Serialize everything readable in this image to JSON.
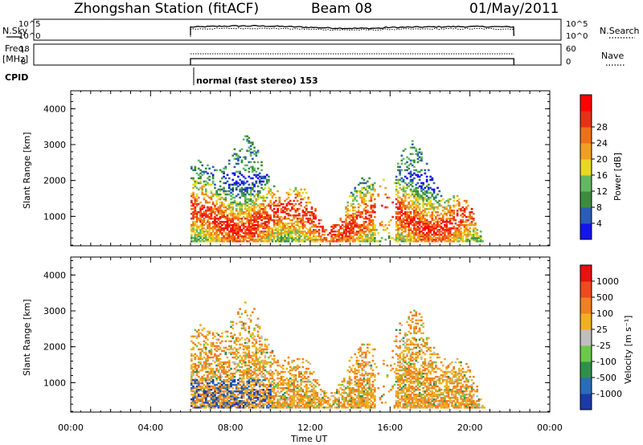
{
  "header": {
    "station": "Zhongshan Station (fitACF)",
    "beam": "Beam 08",
    "date": "01/May/2011"
  },
  "strips": {
    "nsky_label": "N.Sky",
    "nsearch_label": "N.Search",
    "freq_label_1": "Freq.",
    "freq_label_2": "[MHz]",
    "nave_label": "Nave",
    "cpid_label": "CPID",
    "cpid_text": "normal (fast stereo) 153",
    "nsky_ticks": [
      "10^5",
      "10^0"
    ],
    "nsearch_ticks": [
      "10^5",
      "10^0"
    ],
    "freq_ticks": [
      "18",
      "8"
    ],
    "nave_ticks": [
      "60",
      "0"
    ]
  },
  "chart_data": [
    {
      "type": "heatmap",
      "name": "power",
      "ylabel": "Slant Range [km]",
      "xlabel": "",
      "ylim": [
        180,
        4500
      ],
      "yticks": [
        "1000",
        "2000",
        "3000",
        "4000"
      ],
      "xlim": [
        0,
        24
      ],
      "colorbar": {
        "label": "Power [dB]",
        "ticks": [
          "4",
          "8",
          "12",
          "16",
          "20",
          "24",
          "28"
        ],
        "colors": [
          "#1414f0",
          "#2a5cb8",
          "#3c8c3c",
          "#62b862",
          "#e8d820",
          "#f0a020",
          "#f07018",
          "#e83018",
          "#ff0000"
        ]
      },
      "data_window_hours": [
        6.0,
        22.2
      ]
    },
    {
      "type": "heatmap",
      "name": "velocity",
      "ylabel": "Slant Range [km]",
      "xlabel": "Time UT",
      "ylim": [
        180,
        4500
      ],
      "yticks": [
        "1000",
        "2000",
        "3000",
        "4000"
      ],
      "xlim": [
        0,
        24
      ],
      "xticks": [
        "00:00",
        "04:00",
        "08:00",
        "12:00",
        "16:00",
        "20:00",
        "00:00"
      ],
      "colorbar": {
        "label": "Velocity [m s⁻¹]",
        "ticks": [
          "1000",
          "500",
          "100",
          "25",
          "-25",
          "-100",
          "-500",
          "-1000"
        ],
        "colors": [
          "#1a3aa8",
          "#2a6cb8",
          "#2f8f4a",
          "#6cc84a",
          "#bfbfbf",
          "#f0b020",
          "#f08020",
          "#f04820",
          "#e81010"
        ]
      },
      "data_window_hours": [
        6.0,
        22.2
      ]
    }
  ]
}
